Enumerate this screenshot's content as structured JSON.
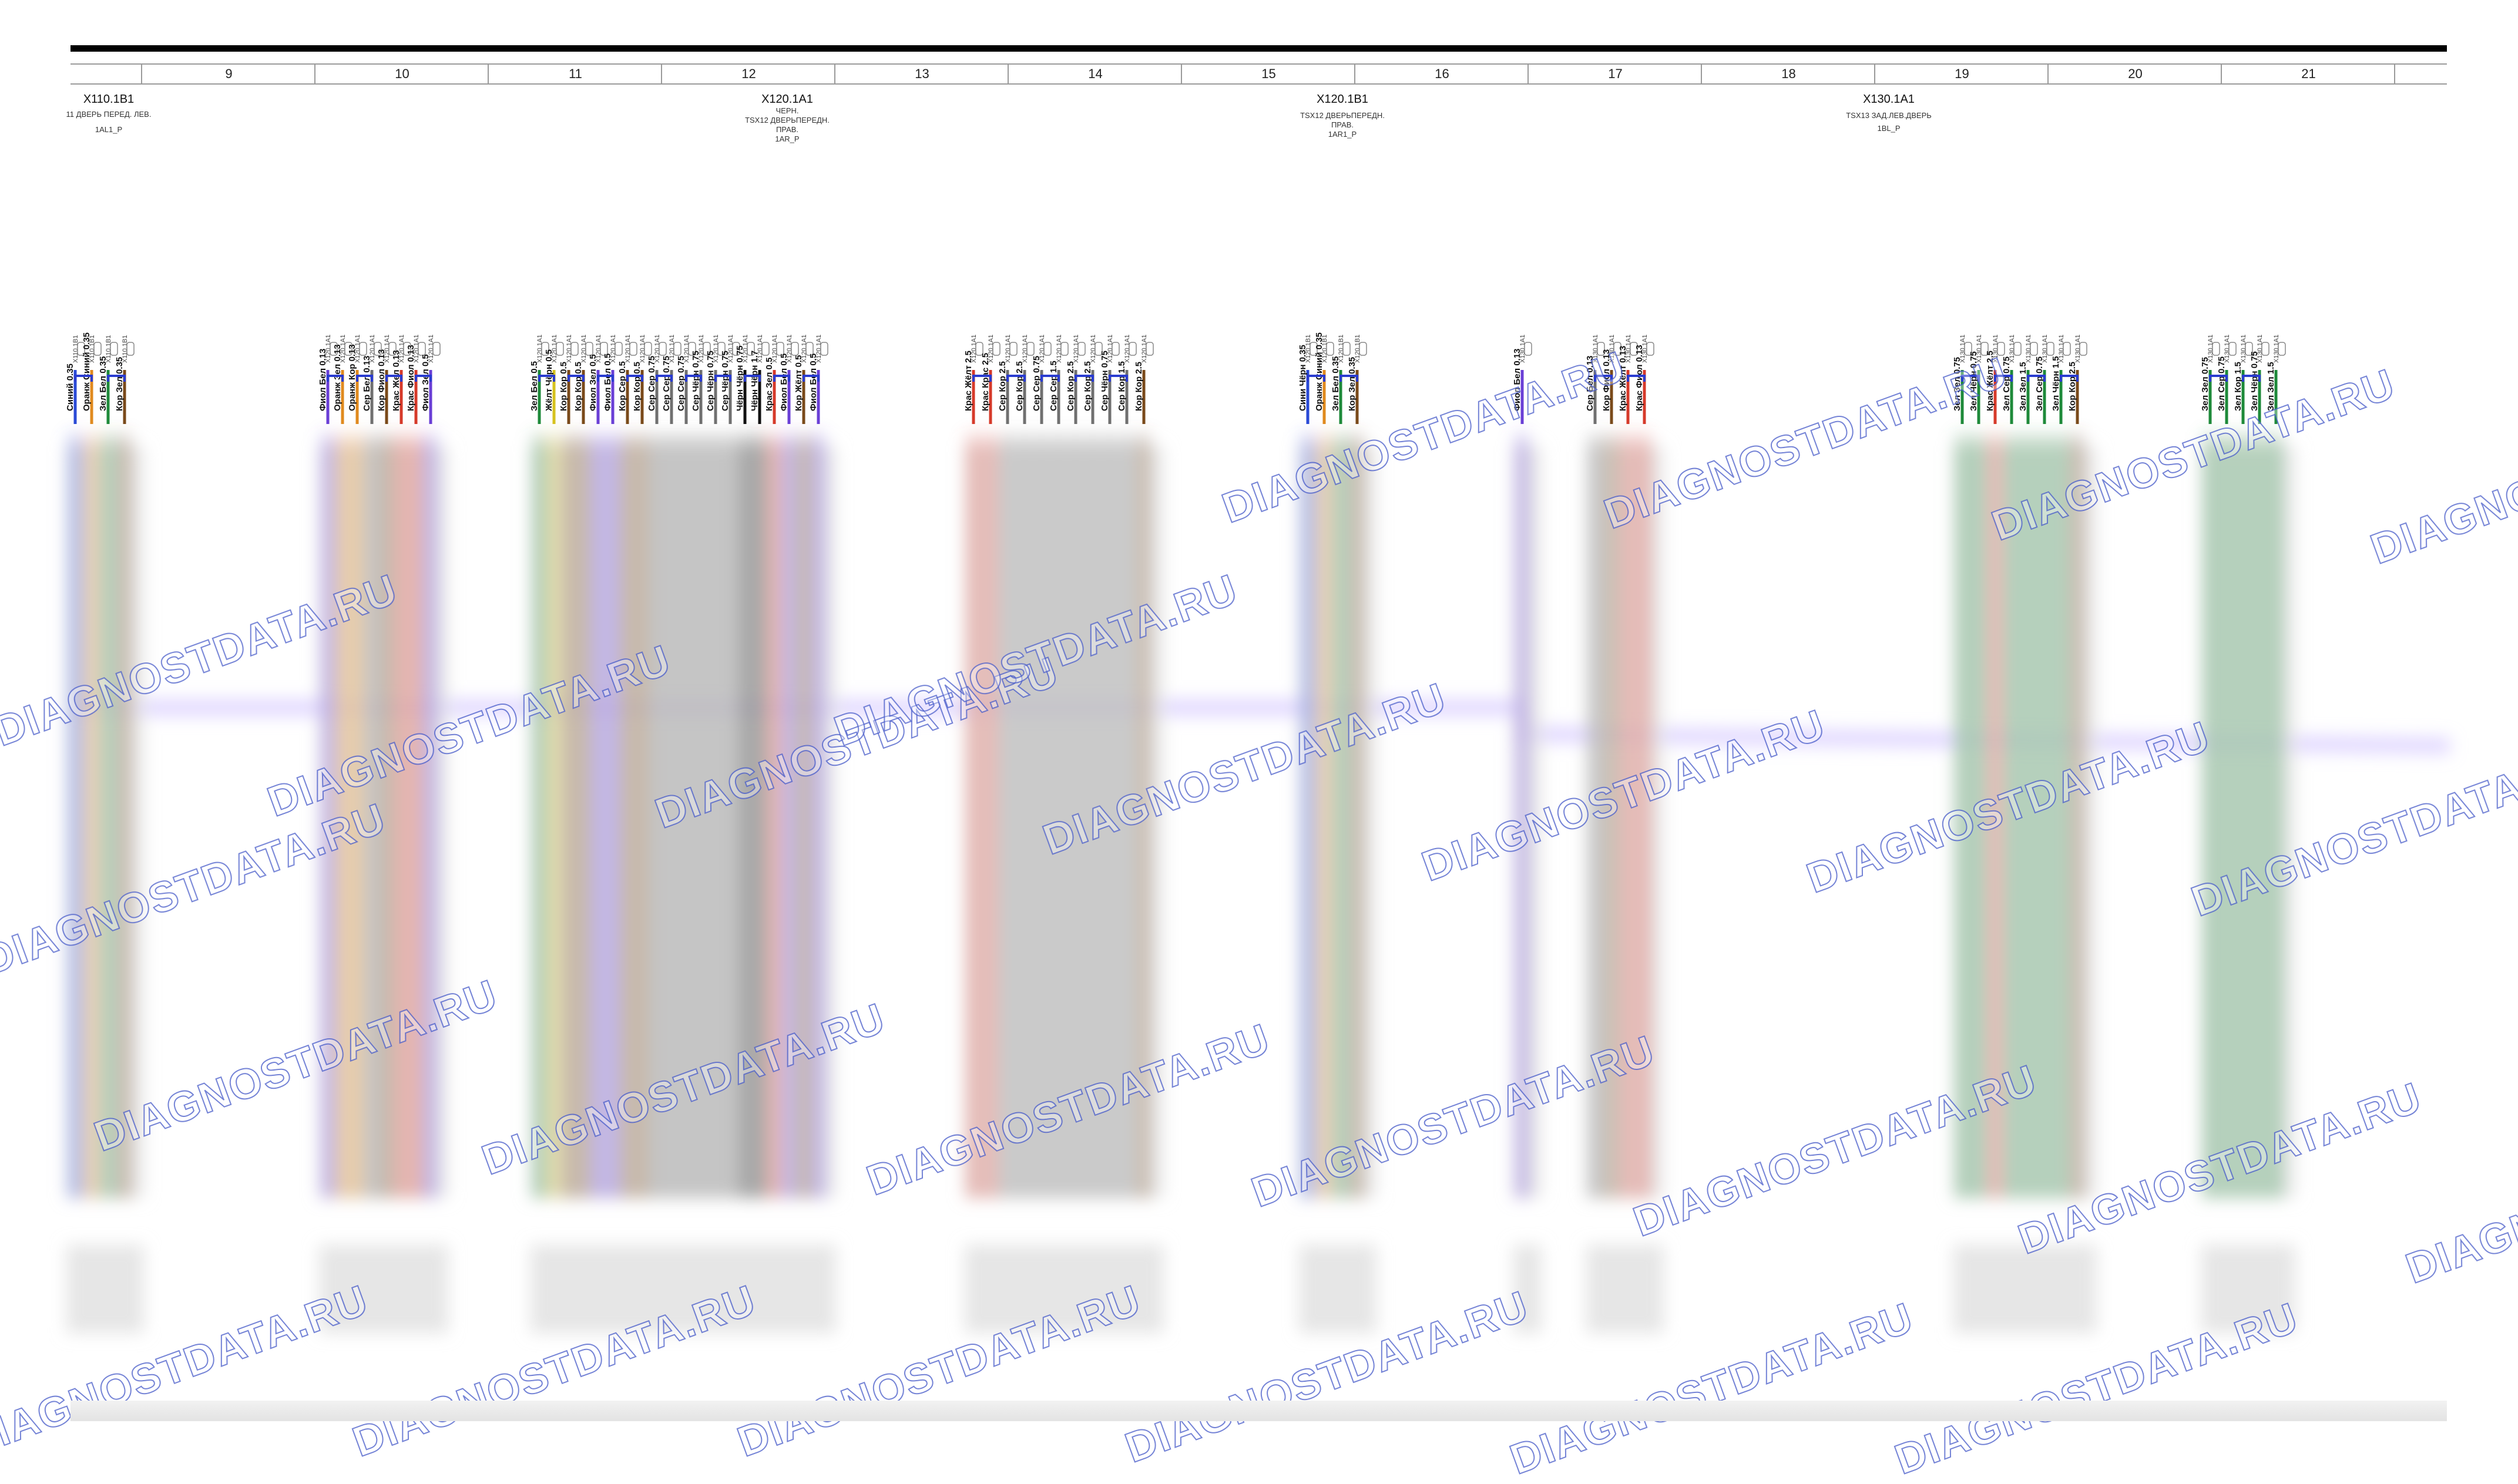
{
  "columns": [
    "9",
    "10",
    "11",
    "12",
    "13",
    "14",
    "15",
    "16",
    "17",
    "18",
    "19",
    "20",
    "21"
  ],
  "connectors": [
    {
      "title": "X110.1B1",
      "lines": [
        "11 ДВЕРЬ ПЕРЕД. ЛЕВ.",
        "1AL1_P"
      ]
    },
    {
      "title": "X120.1A1",
      "lines": [
        "ЧЕРН.",
        "TSX12 ДВЕРЬПЕРЕДН.",
        "ПРАВ.",
        "1AR_P"
      ]
    },
    {
      "title": "X120.1B1",
      "lines": [
        "TSX12 ДВЕРЬПЕРЕДН.",
        "ПРАВ.",
        "1AR1_P"
      ]
    },
    {
      "title": "X130.1A1",
      "lines": [
        "TSX13 ЗАД.ЛЕВ.ДВЕРЬ",
        "1BL_P"
      ]
    }
  ],
  "wire_colors": {
    "violet": "#6a3fd6",
    "orange": "#e08a1e",
    "green": "#1e8a3a",
    "brown": "#7a4a1a",
    "red": "#d63a2a",
    "gray": "#707070",
    "black": "#111111",
    "blue": "#2a4ad6",
    "yellow": "#d6c21e"
  },
  "wire_groups": [
    {
      "pin_ref": "X110.1B1",
      "wires": [
        {
          "label": "Синий 0.35",
          "color": "blue"
        },
        {
          "label": "Оранж Синий 0.35",
          "color": "orange"
        },
        {
          "label": "Зел Бел 0.35",
          "color": "green"
        },
        {
          "label": "Кор Зел 0.35",
          "color": "brown"
        }
      ]
    },
    {
      "pin_ref": "X120.1A1",
      "wires": [
        {
          "label": "Фиол Бел 0.13",
          "color": "violet"
        },
        {
          "label": "Оранж Зел 0.13",
          "color": "orange"
        },
        {
          "label": "Оранж Кор 0.13",
          "color": "orange"
        },
        {
          "label": "Сер Бел 0.13",
          "color": "gray"
        },
        {
          "label": "Кор Фиол 0.13",
          "color": "brown"
        },
        {
          "label": "Крас Жел 0.13",
          "color": "red"
        },
        {
          "label": "Крас Фиол 0.13",
          "color": "red"
        },
        {
          "label": "Фиол Зел 0.5",
          "color": "violet"
        }
      ]
    },
    {
      "pin_ref": "X120.1A1",
      "wires": [
        {
          "label": "Зел Бел 0.5",
          "color": "green"
        },
        {
          "label": "Жёлт Чёрн 0.5",
          "color": "yellow"
        },
        {
          "label": "Кор Кор 0.5",
          "color": "brown"
        },
        {
          "label": "Кор Кор 0.5",
          "color": "brown"
        },
        {
          "label": "Фиол Зел 0.5",
          "color": "violet"
        },
        {
          "label": "Фиол Бел 0.5",
          "color": "violet"
        },
        {
          "label": "Кор Сер 0.5",
          "color": "brown"
        },
        {
          "label": "Кор Кор 0.5",
          "color": "brown"
        },
        {
          "label": "Сер Сер 0.75",
          "color": "gray"
        },
        {
          "label": "Сер Сер 0.75",
          "color": "gray"
        },
        {
          "label": "Сер Сер 0.75",
          "color": "gray"
        },
        {
          "label": "Сер Чёрн 0.75",
          "color": "gray"
        },
        {
          "label": "Сер Чёрн 0.75",
          "color": "gray"
        },
        {
          "label": "Сер Чёрн 0.75",
          "color": "gray"
        },
        {
          "label": "Чёрн Чёрн 0.75",
          "color": "black"
        },
        {
          "label": "Чёрн Чёрн 1.7",
          "color": "black"
        },
        {
          "label": "Крас Зел 0.5",
          "color": "red"
        },
        {
          "label": "Фиол Бел 0.5",
          "color": "violet"
        },
        {
          "label": "Кор Жёлт 0.5",
          "color": "brown"
        },
        {
          "label": "Фиол Бел 0.5",
          "color": "violet"
        }
      ]
    },
    {
      "pin_ref": "X120.1A1",
      "wires": [
        {
          "label": "Крас Жёлт 2.5",
          "color": "red"
        },
        {
          "label": "Крас Крас 2.5",
          "color": "red"
        },
        {
          "label": "Сер Кор 2.5",
          "color": "gray"
        },
        {
          "label": "Сер Кор 2.5",
          "color": "gray"
        },
        {
          "label": "Сер Сер 0.75",
          "color": "gray"
        },
        {
          "label": "Сер Сер 1.5",
          "color": "gray"
        },
        {
          "label": "Сер Кор 2.5",
          "color": "gray"
        },
        {
          "label": "Сер Кор 2.5",
          "color": "gray"
        },
        {
          "label": "Сер Чёрн 0.75",
          "color": "gray"
        },
        {
          "label": "Сер Кор 1.5",
          "color": "gray"
        },
        {
          "label": "Кор Кор 2.5",
          "color": "brown"
        }
      ]
    },
    {
      "pin_ref": "X120.1B1",
      "wires": [
        {
          "label": "Сини Чёрн 0.35",
          "color": "blue"
        },
        {
          "label": "Оранж Синий 0.35",
          "color": "orange"
        },
        {
          "label": "Зел Бел 0.35",
          "color": "green"
        },
        {
          "label": "Кор Зел 0.35",
          "color": "brown"
        }
      ]
    },
    {
      "pin_ref": "X130.1A1",
      "wires": [
        {
          "label": "Фиол Бел 0.13",
          "color": "violet"
        }
      ]
    },
    {
      "pin_ref": "X130.1A1",
      "wires": [
        {
          "label": "Сер Бел 0.13",
          "color": "gray"
        },
        {
          "label": "Кор Фиол 0.13",
          "color": "brown"
        },
        {
          "label": "Крас Жёлт 0.13",
          "color": "red"
        },
        {
          "label": "Крас Фиол 0.13",
          "color": "red"
        }
      ]
    },
    {
      "pin_ref": "X130.1A1",
      "wires": [
        {
          "label": "Зел Зел 0.75",
          "color": "green"
        },
        {
          "label": "Зел Чёрн 0.75",
          "color": "green"
        },
        {
          "label": "Крас Жёлт 2.5",
          "color": "red"
        },
        {
          "label": "Зел Сер 0.75",
          "color": "green"
        },
        {
          "label": "Зел Зел 1.5",
          "color": "green"
        },
        {
          "label": "Зел Сер 0.75",
          "color": "green"
        },
        {
          "label": "Зел Чёрн 1.5",
          "color": "green"
        },
        {
          "label": "Кор Кор 2.5",
          "color": "brown"
        }
      ]
    },
    {
      "pin_ref": "X130.1A1",
      "wires": [
        {
          "label": "Зел Зел 0.75",
          "color": "green"
        },
        {
          "label": "Зел Сер 0.75",
          "color": "green"
        },
        {
          "label": "Зел Кор 1.5",
          "color": "green"
        },
        {
          "label": "Зел Чёрн 0.75",
          "color": "green"
        },
        {
          "label": "Зел Зел 1.5",
          "color": "green"
        }
      ]
    }
  ],
  "watermark": "DIAGNOSTDATA.RU"
}
